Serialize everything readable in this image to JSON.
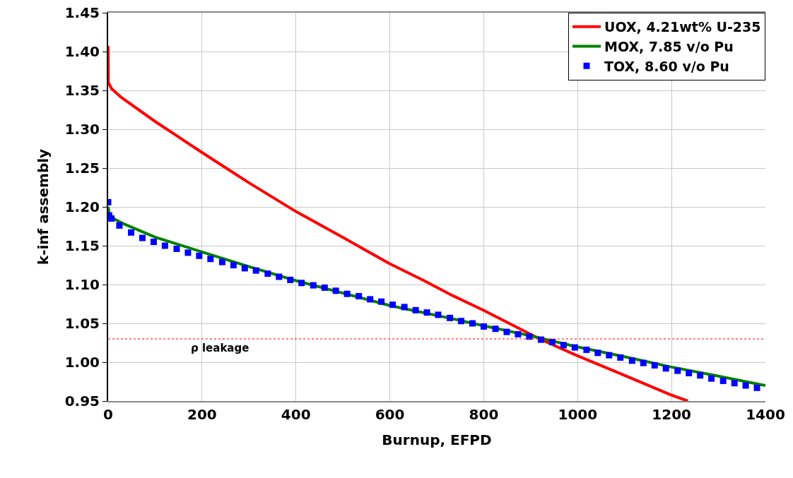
{
  "chart_data": {
    "type": "line",
    "xlabel": "Burnup, EFPD",
    "ylabel": "k-inf assembly",
    "xlim": [
      0,
      1400
    ],
    "xticks": [
      0,
      200,
      400,
      600,
      800,
      1000,
      1200,
      1400
    ],
    "ylim": [
      0.95,
      1.45
    ],
    "yticks": [
      {
        "value": 0.95,
        "label": "0.95"
      },
      {
        "value": 1.0,
        "label": "1.00"
      },
      {
        "value": 1.05,
        "label": "1.05"
      },
      {
        "value": 1.1,
        "label": "1.10"
      },
      {
        "value": 1.15,
        "label": "1.15"
      },
      {
        "value": 1.2,
        "label": "1.20"
      },
      {
        "value": 1.25,
        "label": "1.25"
      },
      {
        "value": 1.3,
        "label": "1.30"
      },
      {
        "value": 1.35,
        "label": "1.35"
      },
      {
        "value": 1.4,
        "label": "1.40"
      },
      {
        "value": 1.45,
        "label": "1.45"
      }
    ],
    "grid": true,
    "legend": "top right",
    "series": [
      {
        "name": "UOX, 4.21wt% U-235",
        "color": "#ff0000",
        "marker": "none",
        "line_style": "solid",
        "x": [
          0,
          0.5,
          7.5,
          28,
          100,
          200,
          300,
          400,
          505,
          599,
          673,
          733,
          799,
          919,
          997,
          1100,
          1198,
          1235
        ],
        "values": [
          1.407,
          1.36,
          1.352,
          1.341,
          1.31,
          1.27,
          1.231,
          1.194,
          1.159,
          1.127,
          1.105,
          1.086,
          1.067,
          1.03,
          1.009,
          0.983,
          0.958,
          0.95
        ]
      },
      {
        "name": "MOX, 7.85 v/o Pu",
        "color": "#008000",
        "marker": "none",
        "line_style": "solid",
        "x": [
          0,
          2,
          5,
          30,
          100,
          200,
          300,
          400,
          500,
          600,
          733,
          799,
          900,
          997,
          1100,
          1198,
          1300,
          1400
        ],
        "values": [
          1.2,
          1.192,
          1.187,
          1.179,
          1.161,
          1.142,
          1.123,
          1.105,
          1.089,
          1.073,
          1.056,
          1.047,
          1.034,
          1.02,
          1.007,
          0.994,
          0.982,
          0.97
        ]
      },
      {
        "name": "TOX, 8.60 v/o Pu",
        "type": "scatter",
        "color": "#0000ff",
        "marker": "square",
        "x": [
          0,
          2,
          7,
          24,
          49,
          73,
          97,
          121,
          146,
          170,
          194,
          218,
          243,
          267,
          291,
          315,
          340,
          364,
          388,
          412,
          437,
          461,
          485,
          509,
          534,
          558,
          582,
          606,
          631,
          655,
          679,
          703,
          728,
          752,
          776,
          800,
          825,
          849,
          873,
          897,
          922,
          946,
          970,
          994,
          1019,
          1043,
          1067,
          1091,
          1116,
          1140,
          1164,
          1188,
          1213,
          1237,
          1261,
          1285,
          1310,
          1334,
          1358,
          1382
        ],
        "values": [
          1.206,
          1.189,
          1.185,
          1.176,
          1.167,
          1.16,
          1.155,
          1.15,
          1.146,
          1.141,
          1.137,
          1.133,
          1.129,
          1.125,
          1.121,
          1.118,
          1.114,
          1.11,
          1.106,
          1.102,
          1.099,
          1.096,
          1.092,
          1.088,
          1.085,
          1.081,
          1.078,
          1.074,
          1.071,
          1.067,
          1.064,
          1.061,
          1.057,
          1.053,
          1.05,
          1.046,
          1.043,
          1.039,
          1.036,
          1.033,
          1.029,
          1.026,
          1.022,
          1.019,
          1.016,
          1.012,
          1.009,
          1.006,
          1.002,
          0.999,
          0.996,
          0.992,
          0.989,
          0.986,
          0.983,
          0.979,
          0.976,
          0.973,
          0.97,
          0.967
        ]
      }
    ],
    "ref_lines": [
      {
        "axis": "y",
        "value": 1.03,
        "label": "ρ leakage",
        "color": "#ff0000",
        "line_style": "dotted"
      }
    ]
  }
}
